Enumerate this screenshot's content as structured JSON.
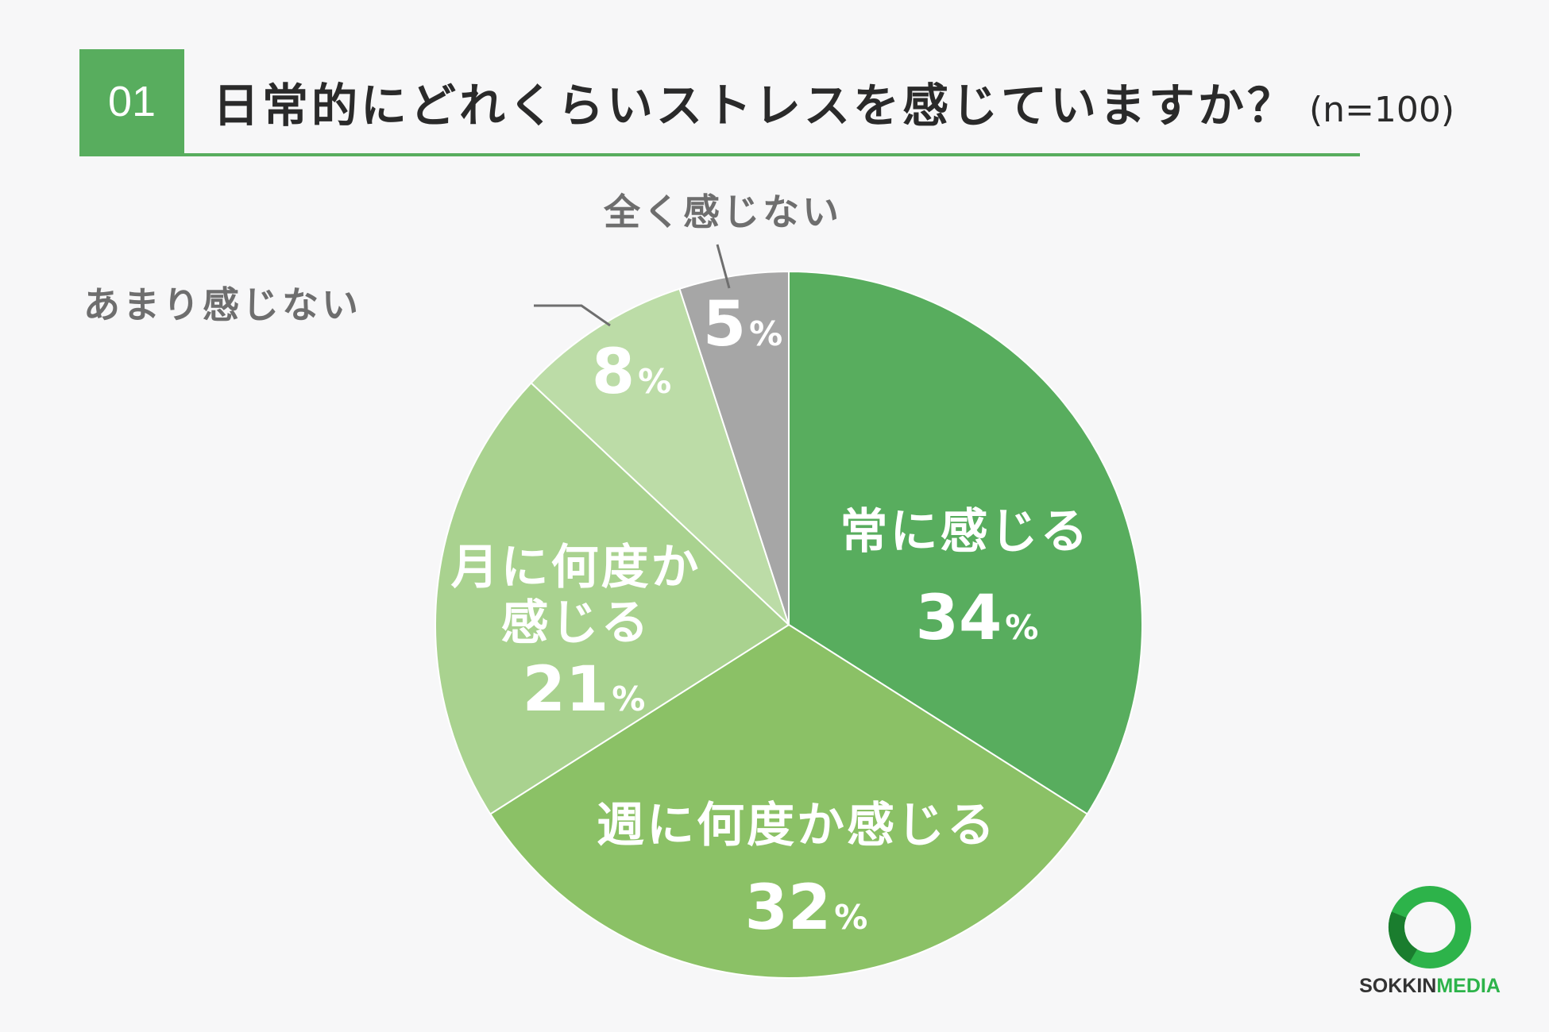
{
  "header": {
    "number": "01",
    "title": "日常的にどれくらいストレスを感じていますか？",
    "sample": "(n=100)"
  },
  "chart_data": {
    "type": "pie",
    "title": "日常的にどれくらいストレスを感じていますか？",
    "categories": [
      "常に感じる",
      "週に何度か感じる",
      "月に何度か感じる",
      "あまり感じない",
      "全く感じない"
    ],
    "values": [
      34,
      32,
      21,
      8,
      5
    ],
    "unit": "%",
    "colors": [
      "#58ad5e",
      "#8bc166",
      "#a9d28f",
      "#bcdca7",
      "#a6a6a6"
    ],
    "start": "12 o'clock",
    "direction": "clockwise"
  },
  "logo": {
    "text_bold": "SOKKIN",
    "text_light": "MEDIA"
  }
}
